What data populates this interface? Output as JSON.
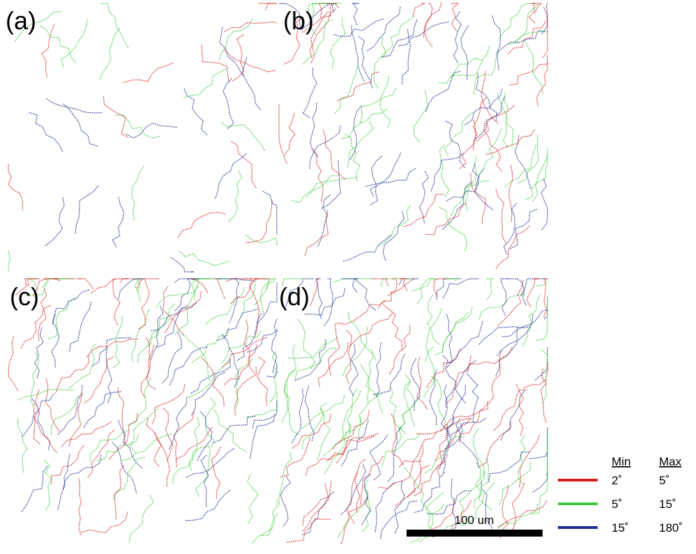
{
  "panels": [
    {
      "label": "(a)"
    },
    {
      "label": "(b)"
    },
    {
      "label": "(c)"
    },
    {
      "label": "(d)"
    }
  ],
  "legend": {
    "headers": [
      "Min",
      "Max"
    ],
    "rows": [
      {
        "color": "#d42020",
        "min": "2˚",
        "max": "5˚"
      },
      {
        "color": "#3ec83e",
        "min": "5˚",
        "max": "15˚"
      },
      {
        "color": "#1f2f8f",
        "min": "15˚",
        "max": "180˚"
      }
    ]
  },
  "scale_bar": {
    "label": "100 um"
  }
}
